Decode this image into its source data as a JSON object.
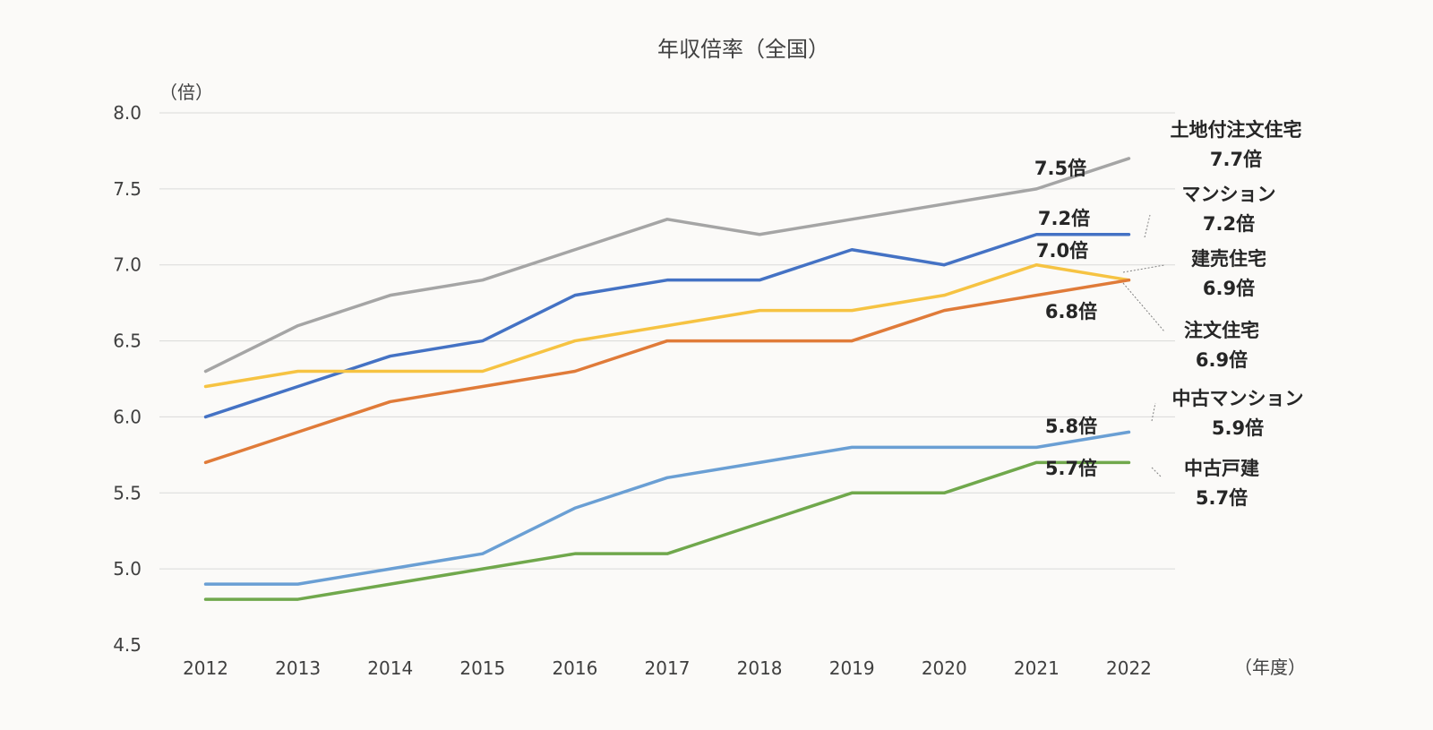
{
  "chart_data": {
    "type": "line",
    "title": "年収倍率（全国）",
    "ylabel": "（倍）",
    "xlabel": "（年度）",
    "ylim": [
      4.5,
      8.0
    ],
    "yticks": [
      "4.5",
      "5.0",
      "5.5",
      "6.0",
      "6.5",
      "7.0",
      "7.5",
      "8.0"
    ],
    "grid": true,
    "categories": [
      "2012",
      "2013",
      "2014",
      "2015",
      "2016",
      "2017",
      "2018",
      "2019",
      "2020",
      "2021",
      "2022"
    ],
    "series": [
      {
        "name": "土地付注文住宅",
        "color": "#a5a5a5",
        "values": [
          6.3,
          6.6,
          6.8,
          6.9,
          7.1,
          7.3,
          7.2,
          7.3,
          7.4,
          7.5,
          7.7
        ],
        "end_label": "7.7倍",
        "point_label": "7.5倍"
      },
      {
        "name": "マンション",
        "color": "#4472c4",
        "values": [
          6.0,
          6.2,
          6.4,
          6.5,
          6.8,
          6.9,
          6.9,
          7.1,
          7.0,
          7.2,
          7.2
        ],
        "end_label": "7.2倍",
        "point_label": "7.2倍"
      },
      {
        "name": "建売住宅",
        "color": "#f6c342",
        "values": [
          6.2,
          6.3,
          6.3,
          6.3,
          6.5,
          6.6,
          6.7,
          6.7,
          6.8,
          7.0,
          6.9
        ],
        "end_label": "6.9倍",
        "point_label": "7.0倍"
      },
      {
        "name": "注文住宅",
        "color": "#e07b39",
        "values": [
          5.7,
          5.9,
          6.1,
          6.2,
          6.3,
          6.5,
          6.5,
          6.5,
          6.7,
          6.8,
          6.9
        ],
        "end_label": "6.9倍",
        "point_label": "6.8倍"
      },
      {
        "name": "中古マンション",
        "color": "#6a9fd4",
        "values": [
          4.9,
          4.9,
          5.0,
          5.1,
          5.4,
          5.6,
          5.7,
          5.8,
          5.8,
          5.8,
          5.9
        ],
        "end_label": "5.9倍",
        "point_label": "5.8倍"
      },
      {
        "name": "中古戸建",
        "color": "#70a84c",
        "values": [
          4.8,
          4.8,
          4.9,
          5.0,
          5.1,
          5.1,
          5.3,
          5.5,
          5.5,
          5.7,
          5.7
        ],
        "end_label": "5.7倍",
        "point_label": "5.7倍"
      }
    ]
  }
}
